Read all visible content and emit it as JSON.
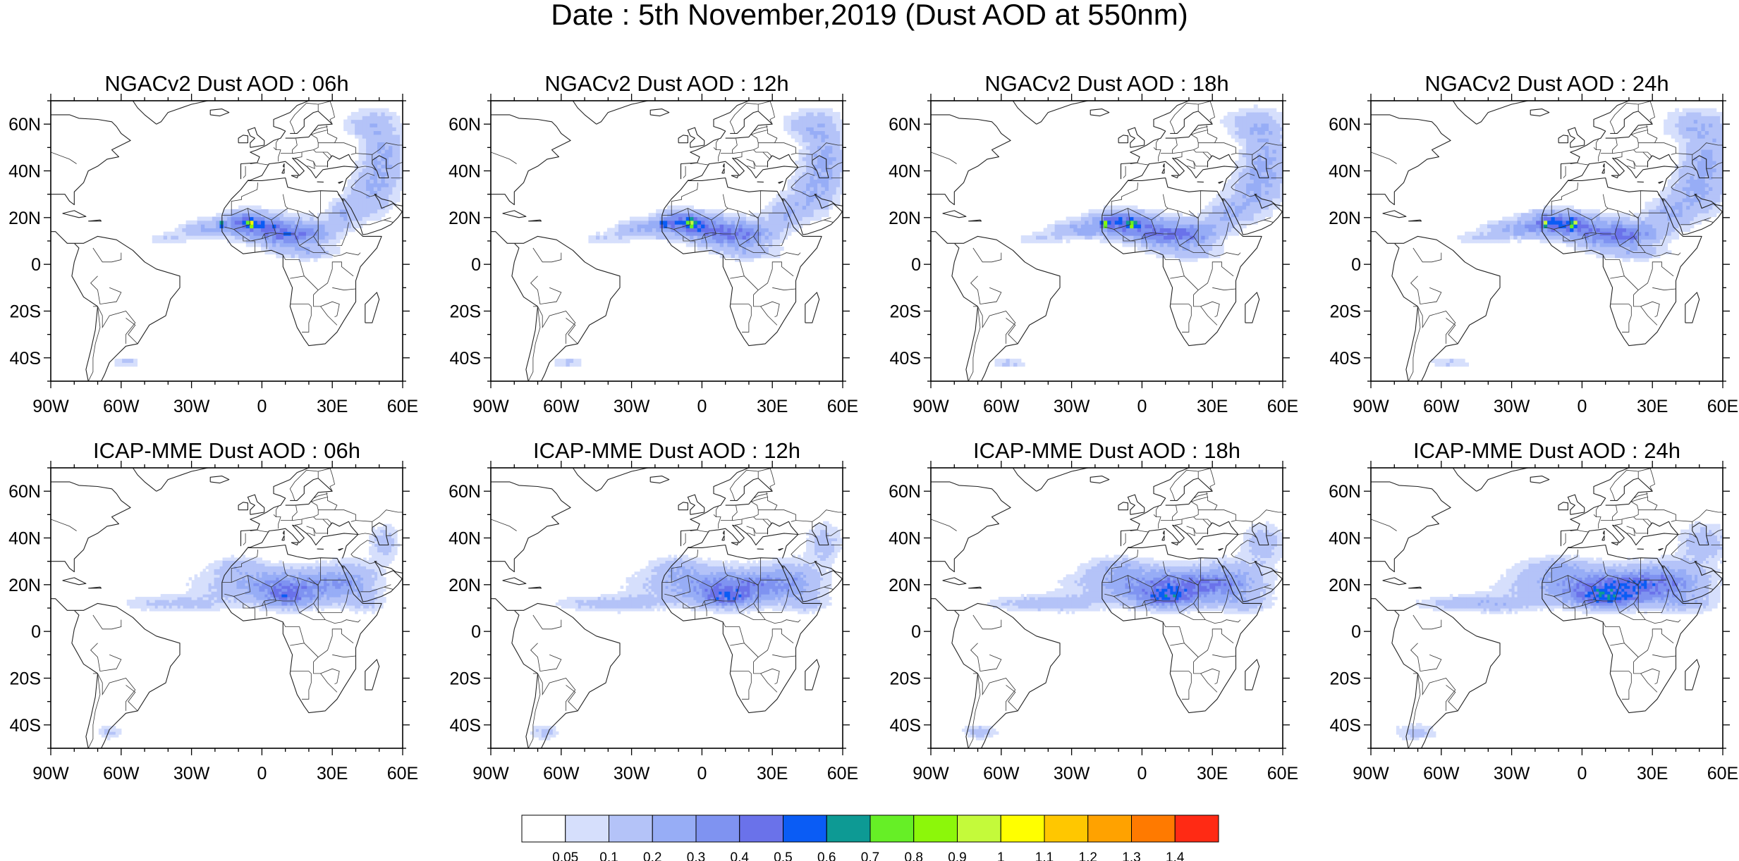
{
  "title": "Date : 5th November,2019 (Dust AOD at 550nm)",
  "panels": [
    {
      "title": "NGACv2 Dust AOD : 06h",
      "model": "NGACv2",
      "lead": "06h"
    },
    {
      "title": "NGACv2 Dust AOD : 12h",
      "model": "NGACv2",
      "lead": "12h"
    },
    {
      "title": "NGACv2 Dust AOD : 18h",
      "model": "NGACv2",
      "lead": "18h"
    },
    {
      "title": "NGACv2 Dust AOD : 24h",
      "model": "NGACv2",
      "lead": "24h"
    },
    {
      "title": "ICAP-MME Dust AOD : 06h",
      "model": "ICAP-MME",
      "lead": "06h"
    },
    {
      "title": "ICAP-MME Dust AOD : 12h",
      "model": "ICAP-MME",
      "lead": "12h"
    },
    {
      "title": "ICAP-MME Dust AOD : 18h",
      "model": "ICAP-MME",
      "lead": "18h"
    },
    {
      "title": "ICAP-MME Dust AOD : 24h",
      "model": "ICAP-MME",
      "lead": "24h"
    }
  ],
  "map": {
    "lon_range": [
      -90,
      60
    ],
    "lat_range": [
      -50,
      70
    ],
    "lon_ticks": [
      {
        "value": -90,
        "label": "90W"
      },
      {
        "value": -60,
        "label": "60W"
      },
      {
        "value": -30,
        "label": "30W"
      },
      {
        "value": 0,
        "label": "0"
      },
      {
        "value": 30,
        "label": "30E"
      },
      {
        "value": 60,
        "label": "60E"
      }
    ],
    "lat_ticks": [
      {
        "value": 60,
        "label": "60N"
      },
      {
        "value": 40,
        "label": "40N"
      },
      {
        "value": 20,
        "label": "20N"
      },
      {
        "value": 0,
        "label": "0"
      },
      {
        "value": -20,
        "label": "20S"
      },
      {
        "value": -40,
        "label": "40S"
      }
    ]
  },
  "colorbar": {
    "labels": [
      "0.05",
      "0.1",
      "0.2",
      "0.3",
      "0.4",
      "0.5",
      "0.6",
      "0.7",
      "0.8",
      "0.9",
      "1",
      "1.1",
      "1.2",
      "1.3",
      "1.4"
    ],
    "colors": [
      "#ffffff",
      "#d6dffc",
      "#b4c3f8",
      "#97adf6",
      "#7f93f1",
      "#6a72ea",
      "#0a5cf5",
      "#0d9a94",
      "#66ef26",
      "#8cf70a",
      "#c4fa3a",
      "#ffff00",
      "#ffc700",
      "#ffa200",
      "#ff7a00",
      "#ff2a14"
    ]
  }
}
